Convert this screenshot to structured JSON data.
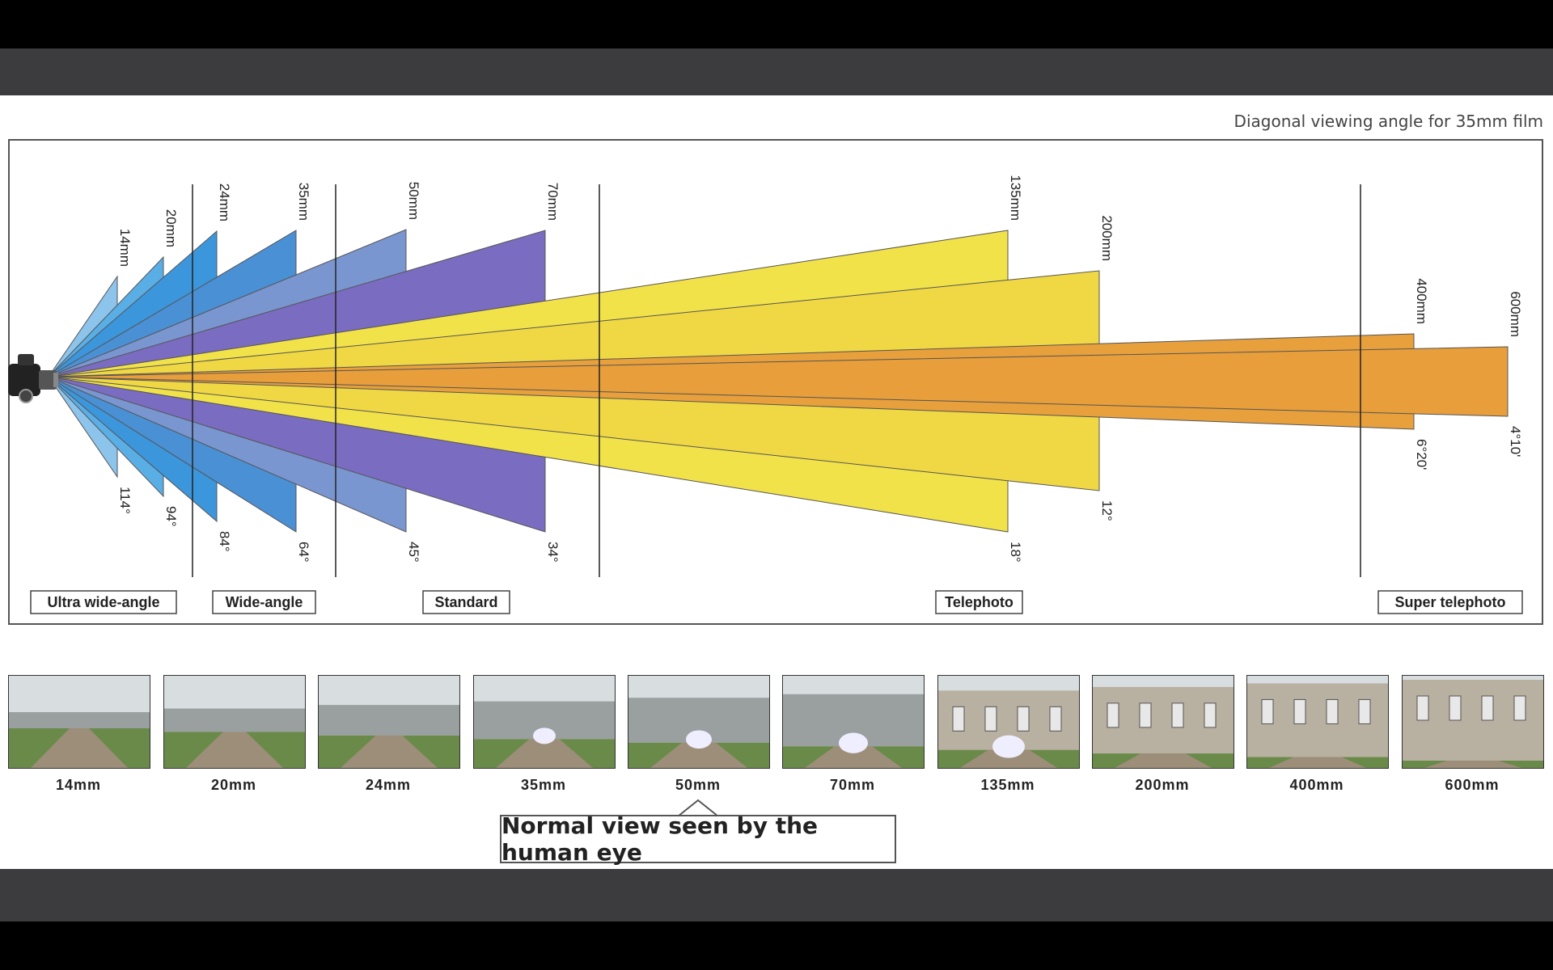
{
  "header_note": "Diagonal viewing angle for 35mm film",
  "lenses": [
    {
      "focal": "14mm",
      "angle": "114°"
    },
    {
      "focal": "20mm",
      "angle": "94°"
    },
    {
      "focal": "24mm",
      "angle": "84°"
    },
    {
      "focal": "35mm",
      "angle": "64°"
    },
    {
      "focal": "50mm",
      "angle": "45°"
    },
    {
      "focal": "70mm",
      "angle": "34°"
    },
    {
      "focal": "135mm",
      "angle": "18°"
    },
    {
      "focal": "200mm",
      "angle": "12°"
    },
    {
      "focal": "400mm",
      "angle": "6°20'"
    },
    {
      "focal": "600mm",
      "angle": "4°10'"
    }
  ],
  "categories": [
    "Ultra wide-angle",
    "Wide-angle",
    "Standard",
    "Telephoto",
    "Super telephoto"
  ],
  "thumbnail_labels": [
    "14mm",
    "20mm",
    "24mm",
    "35mm",
    "50mm",
    "70mm",
    "135mm",
    "200mm",
    "400mm",
    "600mm"
  ],
  "normal_view_label": "Normal view seen by the human eye",
  "colors": {
    "ultra_wide": "#8cc4ec",
    "wide": "#4a90d4",
    "standard": "#7a6cc0",
    "telephoto": "#f2e24a",
    "super_telephoto": "#e8a03c"
  },
  "icons": [
    "camera-icon"
  ]
}
